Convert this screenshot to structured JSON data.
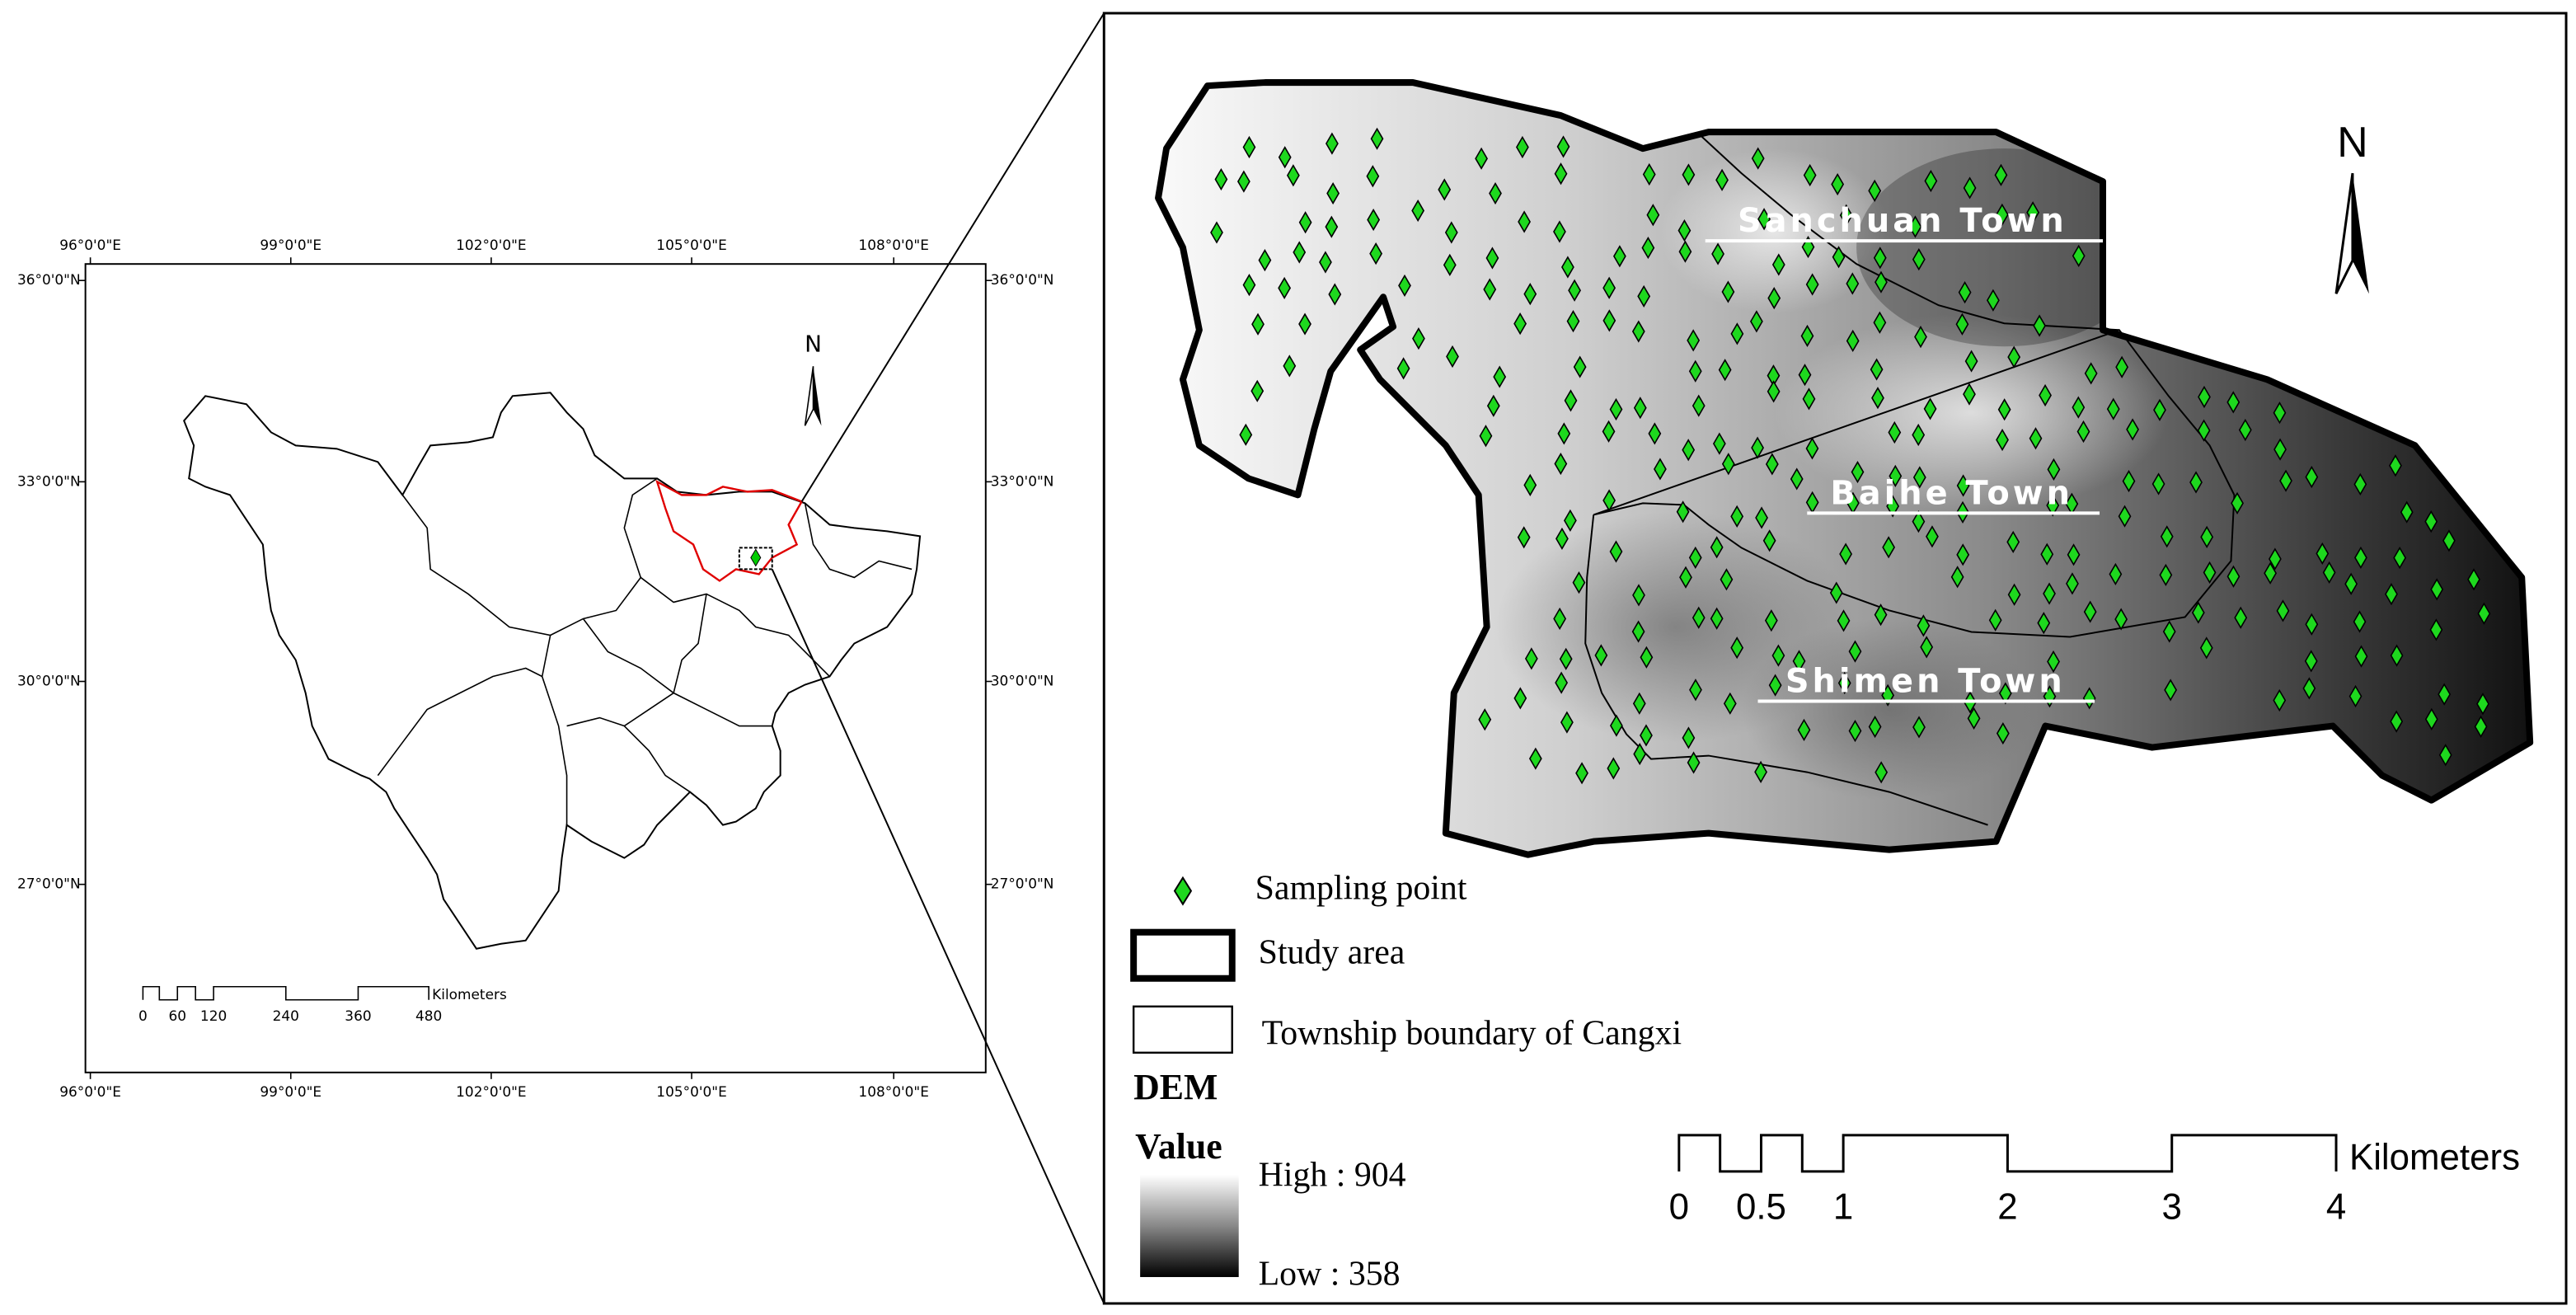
{
  "overview_map": {
    "longitude_labels": [
      "96°0'0\"E",
      "99°0'0\"E",
      "102°0'0\"E",
      "105°0'0\"E",
      "108°0'0\"E"
    ],
    "latitude_labels": [
      "36°0'0\"N",
      "33°0'0\"N",
      "30°0'0\"N",
      "27°0'0\"N"
    ],
    "north": "N",
    "scale_bar": {
      "labels": [
        "0",
        "60",
        "120",
        "240",
        "360",
        "480"
      ],
      "unit": "Kilometers"
    }
  },
  "study_map": {
    "towns": [
      "Sanchuan Town",
      "Baihe Town",
      "Shimen Town"
    ],
    "north": "N",
    "legend": {
      "sampling_point": "Sampling point",
      "study_area": "Study area",
      "township_boundary": "Township boundary of Cangxi",
      "dem_title": "DEM",
      "value_title": "Value",
      "high": "High : 904",
      "low": "Low : 358"
    },
    "scale_bar": {
      "labels": [
        "0",
        "0.5",
        "1",
        "2",
        "3",
        "4"
      ],
      "unit": "Kilometers"
    }
  }
}
